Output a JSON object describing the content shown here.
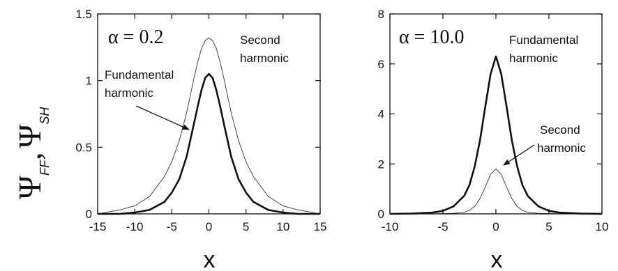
{
  "ylabel": {
    "psi1": "Ψ",
    "sub1": "FF",
    "sep": ",",
    "psi2": "Ψ",
    "sub2": "SH"
  },
  "chart_data": [
    {
      "type": "line",
      "xlabel": "x",
      "xlim": [
        -15,
        15
      ],
      "ylim": [
        0,
        1.5
      ],
      "xticks": [
        -15,
        -10,
        -5,
        0,
        5,
        10,
        15
      ],
      "yticks": [
        0,
        0.5,
        1,
        1.5
      ],
      "ytick_labels": [
        "0",
        "0.5",
        "1",
        "1.5"
      ],
      "param_label": "α = 0.2",
      "annotations": [
        {
          "line1": "Second",
          "line2": "harmonic"
        },
        {
          "line1": "Fundamental",
          "line2": "harmonic"
        }
      ],
      "series": [
        {
          "x": [
            -15,
            -12,
            -10,
            -8,
            -6,
            -5,
            -4,
            -3,
            -2,
            -1.5,
            -1,
            -0.5,
            0,
            0.5,
            1,
            1.5,
            2,
            3,
            4,
            5,
            6,
            8,
            10,
            12,
            15
          ],
          "values": [
            0.0,
            0.0,
            0.01,
            0.03,
            0.09,
            0.16,
            0.26,
            0.43,
            0.68,
            0.81,
            0.93,
            1.02,
            1.05,
            1.02,
            0.93,
            0.81,
            0.68,
            0.43,
            0.26,
            0.16,
            0.09,
            0.03,
            0.01,
            0.0,
            0.0
          ],
          "stroke_width": 2.6,
          "color": "#111111"
        },
        {
          "x": [
            -15,
            -12,
            -10,
            -8,
            -6,
            -5,
            -4,
            -3,
            -2,
            -1.5,
            -1,
            -0.5,
            0,
            0.5,
            1,
            1.5,
            2,
            3,
            4,
            5,
            6,
            8,
            10,
            12,
            15
          ],
          "values": [
            0.0,
            0.03,
            0.06,
            0.13,
            0.28,
            0.39,
            0.55,
            0.76,
            1.02,
            1.14,
            1.24,
            1.3,
            1.32,
            1.3,
            1.24,
            1.14,
            1.02,
            0.76,
            0.55,
            0.39,
            0.28,
            0.13,
            0.06,
            0.03,
            0.0
          ],
          "stroke_width": 1.0,
          "color": "#444444"
        }
      ]
    },
    {
      "type": "line",
      "xlabel": "x",
      "xlim": [
        -10,
        10
      ],
      "ylim": [
        0,
        8
      ],
      "xticks": [
        -10,
        -5,
        0,
        5,
        10
      ],
      "yticks": [
        0,
        2,
        4,
        6,
        8
      ],
      "ytick_labels": [
        "0",
        "2",
        "4",
        "6",
        "8"
      ],
      "param_label": "α = 10.0",
      "annotations": [
        {
          "line1": "Fundamental",
          "line2": "harmonic"
        },
        {
          "line1": "Second",
          "line2": "harmonic"
        }
      ],
      "series": [
        {
          "x": [
            -10,
            -8,
            -6,
            -5,
            -4,
            -3,
            -2.5,
            -2,
            -1.5,
            -1,
            -0.5,
            0,
            0.5,
            1,
            1.5,
            2,
            2.5,
            3,
            4,
            5,
            6,
            8,
            10
          ],
          "values": [
            0.0,
            0.01,
            0.05,
            0.12,
            0.3,
            0.72,
            1.15,
            1.9,
            2.95,
            4.3,
            5.6,
            6.3,
            5.6,
            4.3,
            2.95,
            1.9,
            1.15,
            0.72,
            0.3,
            0.12,
            0.05,
            0.01,
            0.0
          ],
          "stroke_width": 2.6,
          "color": "#111111"
        },
        {
          "x": [
            -10,
            -6,
            -4,
            -3,
            -2.5,
            -2,
            -1.5,
            -1,
            -0.5,
            0,
            0.5,
            1,
            1.5,
            2,
            2.5,
            3,
            4,
            6,
            10
          ],
          "values": [
            0.0,
            0.0,
            0.02,
            0.06,
            0.14,
            0.3,
            0.62,
            1.08,
            1.58,
            1.8,
            1.58,
            1.08,
            0.62,
            0.3,
            0.14,
            0.06,
            0.02,
            0.0,
            0.0
          ],
          "stroke_width": 1.0,
          "color": "#444444"
        }
      ]
    }
  ]
}
